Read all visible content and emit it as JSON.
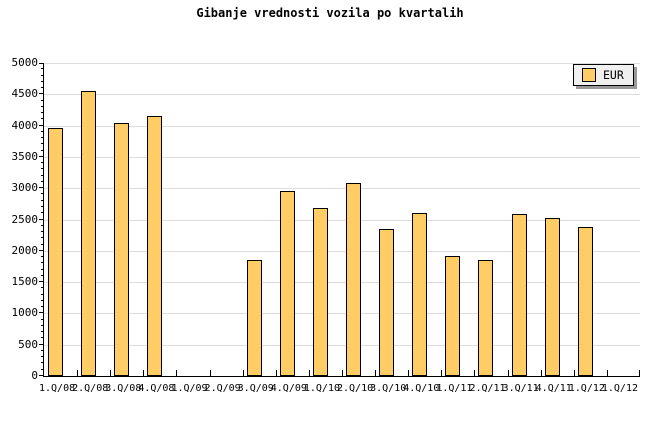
{
  "title": "Gibanje vrednosti vozila po kvartalih",
  "legend": {
    "label": "EUR",
    "swatch_color": "#FFCC66"
  },
  "colors": {
    "bar_fill": "#FFCC66",
    "bar_border": "#000000",
    "grid": "#DDDDDD",
    "axis": "#000000",
    "background": "#FFFFFF",
    "legend_bg": "#F0F0F0",
    "legend_shadow": "#999999"
  },
  "chart_data": {
    "type": "bar",
    "title": "Gibanje vrednosti vozila po kvartalih",
    "series_name": "EUR",
    "categories": [
      "1.Q/08",
      "2.Q/08",
      "3.Q/08",
      "4.Q/08",
      "1.Q/09",
      "2.Q/09",
      "3.Q/09",
      "4.Q/09",
      "1.Q/10",
      "2.Q/10",
      "3.Q/10",
      "4.Q/10",
      "1.Q/11",
      "2.Q/11",
      "3.Q/11",
      "4.Q/11",
      "1.Q/12",
      "1.Q/12"
    ],
    "values": [
      3960,
      4550,
      4040,
      4150,
      null,
      null,
      1860,
      2960,
      2680,
      3080,
      2350,
      2610,
      1910,
      1860,
      2590,
      2530,
      2380,
      null
    ],
    "xlabel": "",
    "ylabel": "",
    "ylim": [
      0,
      5000
    ],
    "ytick_step": 500,
    "ytick_labels": [
      "0",
      "500",
      "1000",
      "1500",
      "2000",
      "2500",
      "3000",
      "3500",
      "4000",
      "4500",
      "5000"
    ],
    "minor_tick_step": 100,
    "grid": "horizontal-major",
    "legend_position": "top-right"
  }
}
